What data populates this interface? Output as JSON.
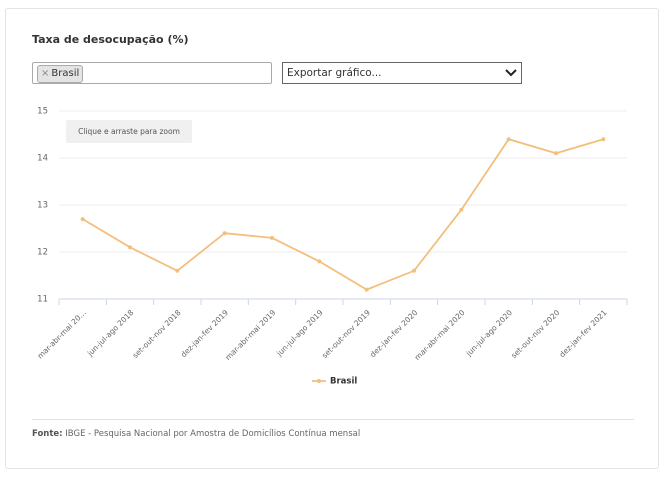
{
  "chart_data": {
    "type": "line",
    "title": "Taxa de desocupação (%)",
    "categories": [
      "mar-abr-mai 20…",
      "jun-jul-ago 2018",
      "set-out-nov 2018",
      "dez-jan-fev 2019",
      "mar-abr-mai 2019",
      "jun-jul-ago 2019",
      "set-out-nov 2019",
      "dez-jan-fev 2020",
      "mar-abr-mai 2020",
      "jun-jul-ago 2020",
      "set-out-nov 2020",
      "dez-jan-fev 2021"
    ],
    "series": [
      {
        "name": "Brasil",
        "color": "#f3bf7c",
        "values": [
          12.7,
          12.1,
          11.6,
          12.4,
          12.3,
          11.8,
          11.2,
          11.6,
          12.9,
          14.4,
          14.1,
          14.4
        ]
      }
    ],
    "ylim": [
      11,
      15
    ],
    "yticks": [
      11,
      12,
      13,
      14,
      15
    ],
    "grid": true,
    "source_label": "Fonte:",
    "source": "IBGE - Pesquisa Nacional por Amostra de Domicílios Contínua mensal"
  },
  "ui": {
    "filter_remove": "×",
    "filter_tag": "Brasil",
    "export_placeholder": "Exportar gráfico...",
    "zoom_hint": "Clique e arraste para zoom"
  }
}
